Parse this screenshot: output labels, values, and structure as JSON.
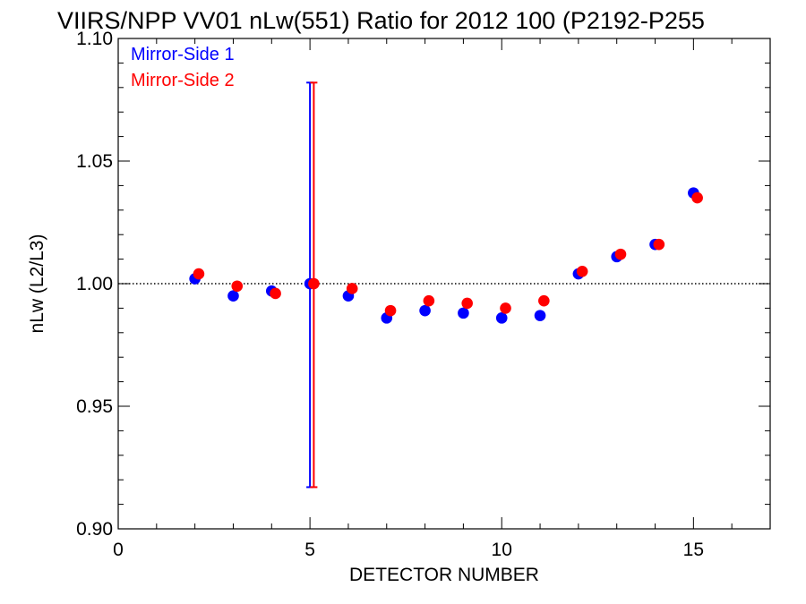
{
  "chart_data": {
    "type": "scatter",
    "title": "VIIRS/NPP VV01 nLw(551) Ratio for 2012 100 (P2192-P255",
    "xlabel": "DETECTOR NUMBER",
    "ylabel": "nLw (L2/L3)",
    "xlim": [
      0,
      17
    ],
    "ylim": [
      0.9,
      1.1
    ],
    "xticks": [
      "0",
      "5",
      "10",
      "15"
    ],
    "yticks": [
      "0.90",
      "0.95",
      "1.00",
      "1.05",
      "1.10"
    ],
    "reference_line": {
      "y": 1.0,
      "style": "dotted"
    },
    "legend_placement": "top-left",
    "series": [
      {
        "name": "Mirror-Side 1",
        "color": "#0000ff",
        "points": [
          {
            "x": 2,
            "y": 1.002
          },
          {
            "x": 3,
            "y": 0.995
          },
          {
            "x": 4,
            "y": 0.997
          },
          {
            "x": 5,
            "y": 1.0,
            "err_low": 0.917,
            "err_high": 1.082
          },
          {
            "x": 6,
            "y": 0.995
          },
          {
            "x": 7,
            "y": 0.986
          },
          {
            "x": 8,
            "y": 0.989
          },
          {
            "x": 9,
            "y": 0.988
          },
          {
            "x": 10,
            "y": 0.986
          },
          {
            "x": 11,
            "y": 0.987
          },
          {
            "x": 12,
            "y": 1.004
          },
          {
            "x": 13,
            "y": 1.011
          },
          {
            "x": 14,
            "y": 1.016
          },
          {
            "x": 15,
            "y": 1.037
          }
        ]
      },
      {
        "name": "Mirror-Side 2",
        "color": "#ff0000",
        "points": [
          {
            "x": 2.1,
            "y": 1.004
          },
          {
            "x": 3.1,
            "y": 0.999
          },
          {
            "x": 4.1,
            "y": 0.996
          },
          {
            "x": 5.1,
            "y": 1.0,
            "err_low": 0.917,
            "err_high": 1.082
          },
          {
            "x": 6.1,
            "y": 0.998
          },
          {
            "x": 7.1,
            "y": 0.989
          },
          {
            "x": 8.1,
            "y": 0.993
          },
          {
            "x": 9.1,
            "y": 0.992
          },
          {
            "x": 10.1,
            "y": 0.99
          },
          {
            "x": 11.1,
            "y": 0.993
          },
          {
            "x": 12.1,
            "y": 1.005
          },
          {
            "x": 13.1,
            "y": 1.012
          },
          {
            "x": 14.1,
            "y": 1.016
          },
          {
            "x": 15.1,
            "y": 1.035
          }
        ]
      }
    ]
  }
}
